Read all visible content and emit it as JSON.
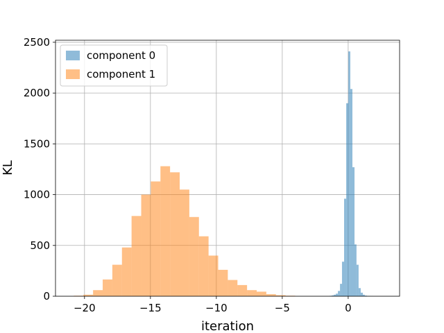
{
  "chart_data": {
    "type": "histogram",
    "title": "",
    "xlabel": "iteration",
    "ylabel": "KL",
    "xlim": [
      -22.2,
      3.9
    ],
    "ylim": [
      0,
      2520
    ],
    "xticks": [
      -20,
      -15,
      -10,
      -5,
      0
    ],
    "xtick_labels": [
      "−20",
      "−15",
      "−10",
      "−5",
      "0"
    ],
    "yticks": [
      0,
      500,
      1000,
      1500,
      2000,
      2500
    ],
    "ytick_labels": [
      "0",
      "500",
      "1000",
      "1500",
      "2000",
      "2500"
    ],
    "grid": true,
    "legend_position": "upper-left",
    "series": [
      {
        "name": "component 0",
        "color": "#1f77b4",
        "alpha": 0.5,
        "bin_edges": [
          -1.41,
          -1.25,
          -1.1,
          -0.94,
          -0.78,
          -0.62,
          -0.47,
          -0.31,
          -0.15,
          0.01,
          0.16,
          0.32,
          0.48,
          0.63,
          0.79,
          0.95,
          1.11,
          1.26,
          1.42,
          1.58,
          1.74,
          1.89,
          2.05
        ],
        "counts": [
          4,
          8,
          15,
          25,
          52,
          122,
          340,
          960,
          1900,
          2410,
          2040,
          1270,
          510,
          310,
          80,
          35,
          15,
          6,
          3,
          2,
          1,
          0
        ]
      },
      {
        "name": "component 1",
        "color": "#ff7f0e",
        "alpha": 0.5,
        "bin_edges": [
          -20.81,
          -20.08,
          -19.35,
          -18.62,
          -17.89,
          -17.16,
          -16.43,
          -15.7,
          -14.97,
          -14.24,
          -13.51,
          -12.78,
          -12.05,
          -11.32,
          -10.59,
          -9.86,
          -9.13,
          -8.4,
          -7.67,
          -6.94,
          -6.21,
          -5.48,
          -4.75,
          -4.02
        ],
        "counts": [
          5,
          15,
          60,
          165,
          310,
          480,
          790,
          1000,
          1130,
          1280,
          1220,
          1050,
          780,
          590,
          400,
          260,
          160,
          110,
          60,
          45,
          20,
          10,
          5
        ]
      }
    ]
  }
}
